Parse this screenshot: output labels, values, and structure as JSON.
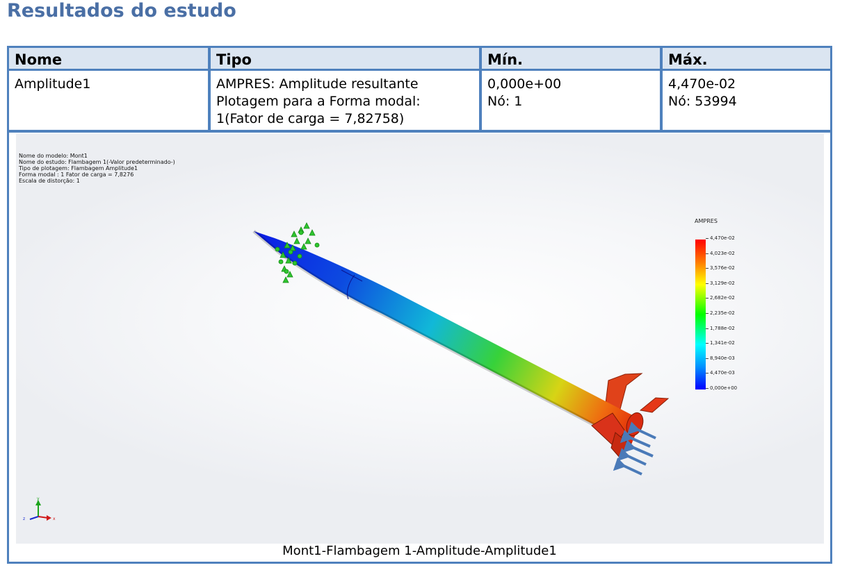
{
  "title": "Resultados do estudo",
  "table": {
    "headers": [
      "Nome",
      "Tipo",
      "Mín.",
      "Máx."
    ],
    "row": {
      "nome": "Amplitude1",
      "tipo": [
        "AMPRES: Amplitude resultante",
        "Plotagem para a Forma modal:",
        "1(Fator de carga = 7,82758)"
      ],
      "min": [
        "0,000e+00",
        "Nó: 1"
      ],
      "max": [
        "4,470e-02",
        "Nó: 53994"
      ]
    }
  },
  "model_info": [
    "Nome do modelo: Mont1",
    "Nome do estudo: Flambagem 1(-Valor predeterminado-)",
    "Tipo de plotagem: Flambagem Amplitude1",
    "Forma modal : 1  Fator de carga = 7,8276",
    "Escala de distorção: 1"
  ],
  "legend": {
    "title": "AMPRES",
    "values": [
      "4,470e-02",
      "4,023e-02",
      "3,576e-02",
      "3,129e-02",
      "2,682e-02",
      "2,235e-02",
      "1,788e-02",
      "1,341e-02",
      "8,940e-03",
      "4,470e-03",
      "0,000e+00"
    ],
    "colors": [
      "#ff0000",
      "#00ff00",
      "#0000ff"
    ]
  },
  "triad": {
    "x": "x",
    "y": "y",
    "z": "z"
  },
  "caption": "Mont1-Flambagem 1-Amplitude-Amplitude1"
}
